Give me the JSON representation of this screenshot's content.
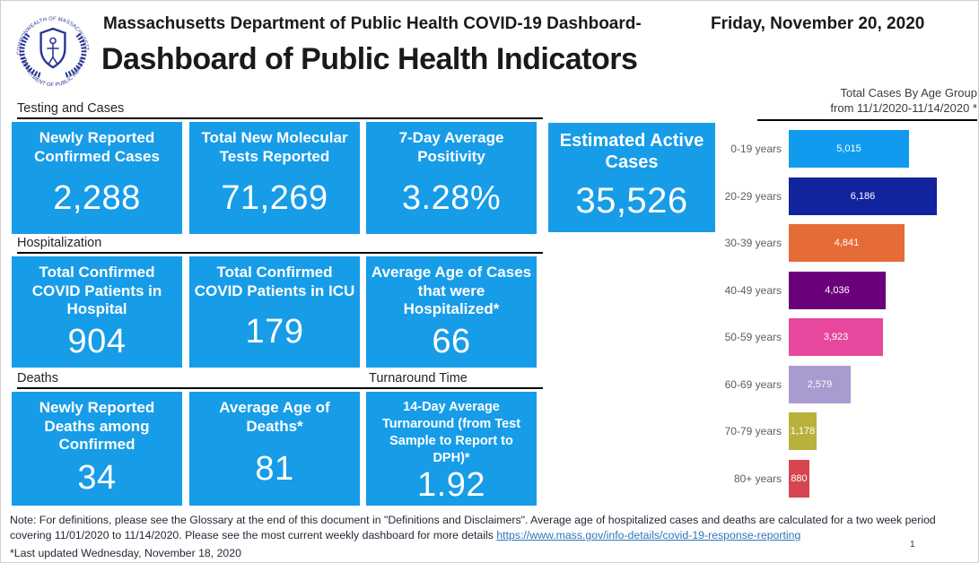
{
  "header": {
    "line1": "Massachusetts Department of Public Health COVID-19 Dashboard-",
    "line2": "Dashboard of Public Health Indicators",
    "date": "Friday, November 20, 2020",
    "logo": {
      "top_text": "COMMONWEALTH OF MASSACHUSETTS",
      "bottom_text": "DEPARTMENT OF PUBLIC HEALTH"
    }
  },
  "sections": {
    "testing": "Testing and Cases",
    "hospitalization": "Hospitalization",
    "deaths": "Deaths",
    "turnaround": "Turnaround Time"
  },
  "cards": {
    "newly_reported_cases": {
      "title": "Newly Reported Confirmed Cases",
      "value": "2,288"
    },
    "total_new_tests": {
      "title": "Total New Molecular Tests Reported",
      "value": "71,269"
    },
    "positivity": {
      "title": "7-Day Average Positivity",
      "value": "3.28%"
    },
    "active_cases": {
      "title": "Estimated Active Cases",
      "value": "35,526"
    },
    "hospital_patients": {
      "title": "Total Confirmed COVID Patients in Hospital",
      "value": "904"
    },
    "icu_patients": {
      "title": "Total Confirmed COVID Patients in ICU",
      "value": "179"
    },
    "avg_age_hospitalized": {
      "title": "Average Age of Cases that were Hospitalized*",
      "value": "66"
    },
    "new_deaths": {
      "title": "Newly Reported Deaths among Confirmed",
      "value": "34"
    },
    "avg_age_deaths": {
      "title": "Average Age of Deaths*",
      "value": "81"
    },
    "turnaround_time": {
      "title": "14-Day Average Turnaround (from Test Sample to Report to DPH)*",
      "value": "1.92"
    }
  },
  "chart_data": {
    "type": "bar",
    "orientation": "horizontal",
    "title": "Total Cases By Age Group",
    "subtitle": "from 11/1/2020-11/14/2020 *",
    "categories": [
      "0-19 years",
      "20-29 years",
      "30-39 years",
      "40-49 years",
      "50-59 years",
      "60-69 years",
      "70-79 years",
      "80+ years"
    ],
    "values": [
      5015,
      6186,
      4841,
      4036,
      3923,
      2579,
      1178,
      880
    ],
    "value_labels": [
      "5,015",
      "6,186",
      "4,841",
      "4,036",
      "3,923",
      "2,579",
      "1,178",
      "880"
    ],
    "colors": [
      "#119BEE",
      "#12239E",
      "#E66C37",
      "#6B007B",
      "#E8479E",
      "#A79BD0",
      "#B8B23C",
      "#D64550"
    ],
    "xlim": [
      0,
      6500
    ],
    "grid": false,
    "legend": "none",
    "data_label_color": "#ffffff"
  },
  "footer": {
    "note_text": "Note: For definitions, please see the Glossary at the end of this document in \"Definitions and Disclaimers\". Average age of hospitalized cases and deaths are calculated for a two week period covering 11/01/2020 to 11/14/2020. Please see the most current weekly dashboard for more details ",
    "link_text": "https://www.mass.gov/info-details/covid-19-response-reporting",
    "last_updated": "*Last updated Wednesday, November 18, 2020",
    "page_number": "1"
  },
  "colors": {
    "card_blue": "#179CE8",
    "seal_navy": "#283593",
    "link_blue": "#2E75B6"
  }
}
